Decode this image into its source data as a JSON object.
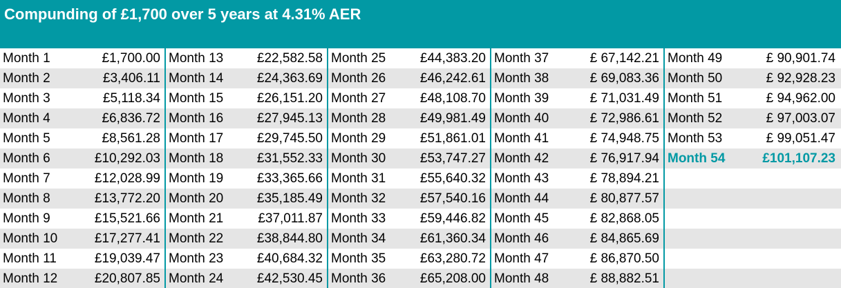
{
  "title": "Compunding of £1,700 over 5 years at 4.31% AER",
  "colors": {
    "accent": "#0299a4",
    "header_text": "#ffffff",
    "shade": "#e5e5e5"
  },
  "columns": [
    {
      "rows": [
        {
          "month": "Month 1",
          "amount": "£1,700.00"
        },
        {
          "month": "Month 2",
          "amount": "£3,406.11"
        },
        {
          "month": "Month 3",
          "amount": "£5,118.34"
        },
        {
          "month": "Month 4",
          "amount": "£6,836.72"
        },
        {
          "month": "Month 5",
          "amount": "£8,561.28"
        },
        {
          "month": "Month 6",
          "amount": "£10,292.03"
        },
        {
          "month": "Month 7",
          "amount": "£12,028.99"
        },
        {
          "month": "Month 8",
          "amount": "£13,772.20"
        },
        {
          "month": "Month 9",
          "amount": "£15,521.66"
        },
        {
          "month": "Month 10",
          "amount": "£17,277.41"
        },
        {
          "month": "Month 11",
          "amount": "£19,039.47"
        },
        {
          "month": "Month 12",
          "amount": "£20,807.85"
        }
      ]
    },
    {
      "rows": [
        {
          "month": "Month 13",
          "amount": "£22,582.58"
        },
        {
          "month": "Month 14",
          "amount": "£24,363.69"
        },
        {
          "month": "Month 15",
          "amount": "£26,151.20"
        },
        {
          "month": "Month 16",
          "amount": "£27,945.13"
        },
        {
          "month": "Month 17",
          "amount": "£29,745.50"
        },
        {
          "month": "Month 18",
          "amount": "£31,552.33"
        },
        {
          "month": "Month 19",
          "amount": "£33,365.66"
        },
        {
          "month": "Month 20",
          "amount": "£35,185.49"
        },
        {
          "month": "Month 21",
          "amount": "£37,011.87"
        },
        {
          "month": "Month 22",
          "amount": "£38,844.80"
        },
        {
          "month": "Month 23",
          "amount": "£40,684.32"
        },
        {
          "month": "Month 24",
          "amount": "£42,530.45"
        }
      ]
    },
    {
      "rows": [
        {
          "month": "Month 25",
          "amount": "£44,383.20"
        },
        {
          "month": "Month 26",
          "amount": "£46,242.61"
        },
        {
          "month": "Month 27",
          "amount": "£48,108.70"
        },
        {
          "month": "Month 28",
          "amount": "£49,981.49"
        },
        {
          "month": "Month 29",
          "amount": "£51,861.01"
        },
        {
          "month": "Month 30",
          "amount": "£53,747.27"
        },
        {
          "month": "Month 31",
          "amount": "£55,640.32"
        },
        {
          "month": "Month 32",
          "amount": "£57,540.16"
        },
        {
          "month": "Month 33",
          "amount": "£59,446.82"
        },
        {
          "month": "Month 34",
          "amount": "£61,360.34"
        },
        {
          "month": "Month 35",
          "amount": "£63,280.72"
        },
        {
          "month": "Month 36",
          "amount": "£65,208.00"
        }
      ]
    },
    {
      "rows": [
        {
          "month": "Month 37",
          "amount": "£ 67,142.21"
        },
        {
          "month": "Month 38",
          "amount": "£ 69,083.36"
        },
        {
          "month": "Month 39",
          "amount": "£ 71,031.49"
        },
        {
          "month": "Month 40",
          "amount": "£ 72,986.61"
        },
        {
          "month": "Month 41",
          "amount": "£ 74,948.75"
        },
        {
          "month": "Month 42",
          "amount": "£ 76,917.94"
        },
        {
          "month": "Month 43",
          "amount": "£ 78,894.21"
        },
        {
          "month": "Month 44",
          "amount": "£ 80,877.57"
        },
        {
          "month": "Month 45",
          "amount": "£ 82,868.05"
        },
        {
          "month": "Month 46",
          "amount": "£ 84,865.69"
        },
        {
          "month": "Month 47",
          "amount": "£ 86,870.50"
        },
        {
          "month": "Month 48",
          "amount": "£ 88,882.51"
        }
      ]
    },
    {
      "rows": [
        {
          "month": "Month 49",
          "amount": "£ 90,901.74"
        },
        {
          "month": "Month 50",
          "amount": "£ 92,928.23"
        },
        {
          "month": "Month 51",
          "amount": "£ 94,962.00"
        },
        {
          "month": "Month 52",
          "amount": "£ 97,003.07"
        },
        {
          "month": "Month 53",
          "amount": "£ 99,051.47"
        },
        {
          "month": "Month 54",
          "amount": "£101,107.23",
          "highlight": true
        }
      ]
    }
  ]
}
